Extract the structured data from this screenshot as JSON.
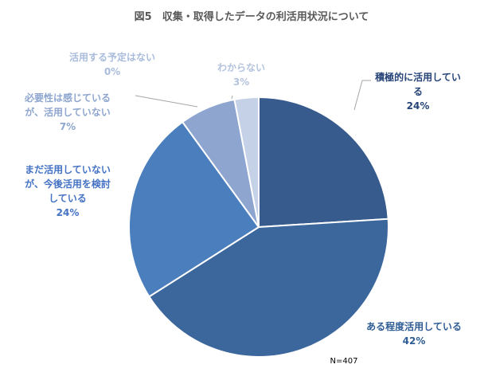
{
  "chart_data": {
    "type": "pie",
    "title": "図5　収集・取得したデータの利活用状況について",
    "note": "N=407",
    "slices": [
      {
        "label_lines": [
          "積極的に活用してい",
          "る"
        ],
        "percent_label": "24%",
        "value": 24,
        "color": "#365b8c"
      },
      {
        "label_lines": [
          "ある程度活用している"
        ],
        "percent_label": "42%",
        "value": 42,
        "color": "#3c679d"
      },
      {
        "label_lines": [
          "まだ活用していない",
          "が、今後活用を検討",
          "している"
        ],
        "percent_label": "24%",
        "value": 24,
        "color": "#4a7ebd"
      },
      {
        "label_lines": [
          "必要性は感じている",
          "が、活用していない"
        ],
        "percent_label": "7%",
        "value": 7,
        "color": "#8ea6cf"
      },
      {
        "label_lines": [
          "活用する予定はない"
        ],
        "percent_label": "0%",
        "value": 0,
        "color": "#a9bcdc"
      },
      {
        "label_lines": [
          "わからない"
        ],
        "percent_label": "3%",
        "value": 3,
        "color": "#c5d1e6"
      }
    ]
  }
}
